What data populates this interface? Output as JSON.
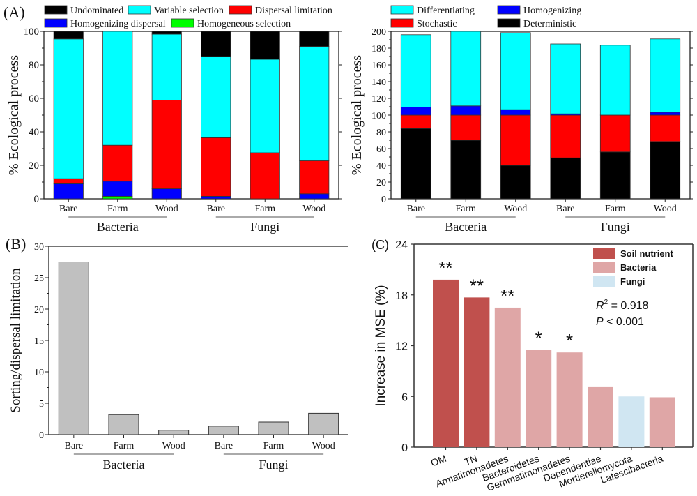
{
  "chart_data": [
    {
      "panel": "(A)",
      "type": "bar",
      "stacked": true,
      "ylabel": "% Ecological process",
      "ylim": [
        0,
        100
      ],
      "yticks": [
        0,
        20,
        40,
        60,
        80,
        100
      ],
      "categories": [
        "Bare",
        "Farm",
        "Wood",
        "Bare",
        "Farm",
        "Wood"
      ],
      "groups": [
        {
          "label": "Bacteria",
          "span": [
            0,
            2
          ]
        },
        {
          "label": "Fungi",
          "span": [
            3,
            5
          ]
        }
      ],
      "legend": [
        "Undominated",
        "Variable selection",
        "Dispersal limitation",
        "Homogenizing dispersal",
        "Homogeneous selection"
      ],
      "legend_position": "top",
      "series": [
        {
          "name": "Homogeneous selection",
          "color": "#00ff00",
          "values": [
            0,
            1.5,
            0,
            0,
            0,
            0
          ]
        },
        {
          "name": "Homogenizing dispersal",
          "color": "#0000ff",
          "values": [
            9,
            9,
            6,
            1.5,
            0,
            3
          ]
        },
        {
          "name": "Dispersal limitation",
          "color": "#ff0000",
          "values": [
            3,
            21.5,
            53,
            35,
            27.5,
            19.7
          ]
        },
        {
          "name": "Variable selection",
          "color": "#00ffff",
          "values": [
            83.5,
            68,
            39.3,
            48.5,
            55.8,
            68.3
          ]
        },
        {
          "name": "Undominated",
          "color": "#000000",
          "values": [
            4.5,
            0,
            1.7,
            15,
            16.7,
            9
          ]
        }
      ]
    },
    {
      "panel": "(A-right)",
      "type": "bar",
      "stacked": true,
      "ylabel": "% Ecological process",
      "ylim": [
        0,
        200
      ],
      "yticks": [
        0,
        20,
        40,
        60,
        80,
        100,
        120,
        140,
        160,
        180,
        200
      ],
      "categories": [
        "Bare",
        "Farm",
        "Wood",
        "Bare",
        "Farm",
        "Wood"
      ],
      "groups": [
        {
          "label": "Bacteria",
          "span": [
            0,
            2
          ]
        },
        {
          "label": "Fungi",
          "span": [
            3,
            5
          ]
        }
      ],
      "legend": [
        "Differentiating",
        "Homogenizing",
        "Stochastic",
        "Deterministic"
      ],
      "legend_position": "top",
      "series": [
        {
          "name": "Deterministic",
          "color": "#000000",
          "values": [
            84,
            70,
            40,
            49,
            56,
            68.5
          ]
        },
        {
          "name": "Stochastic",
          "color": "#ff0000",
          "values": [
            16,
            30,
            60,
            51,
            44,
            31.5
          ]
        },
        {
          "name": "Homogenizing",
          "color": "#0000ff",
          "values": [
            9.5,
            11,
            6.5,
            1.5,
            0,
            3.5
          ]
        },
        {
          "name": "Differentiating",
          "color": "#00ffff",
          "values": [
            86.5,
            89,
            92,
            83.5,
            83.5,
            87.5
          ]
        }
      ]
    },
    {
      "panel": "(B)",
      "type": "bar",
      "ylabel": "Sorting/dispersal limitation",
      "ylim": [
        0,
        30
      ],
      "yticks": [
        0,
        5,
        10,
        15,
        20,
        25,
        30
      ],
      "categories": [
        "Bare",
        "Farm",
        "Wood",
        "Bare",
        "Farm",
        "Wood"
      ],
      "groups": [
        {
          "label": "Bacteria",
          "span": [
            0,
            2
          ]
        },
        {
          "label": "Fungi",
          "span": [
            3,
            5
          ]
        }
      ],
      "color": "#c0c0c0",
      "values": [
        27.5,
        3.2,
        0.7,
        1.35,
        2.0,
        3.4
      ]
    },
    {
      "panel": "(C)",
      "type": "bar",
      "ylabel": "Increase in MSE (%)",
      "ylim": [
        0,
        24
      ],
      "yticks": [
        0,
        6,
        12,
        18,
        24
      ],
      "categories": [
        "OM",
        "TN",
        "Armatimonadetes",
        "Bacteroidetes",
        "Gemmatimonadetes",
        "Dependentiae",
        "Mortierellomycota",
        "Latescibacteria"
      ],
      "values": [
        19.8,
        17.7,
        16.5,
        11.5,
        11.2,
        7.1,
        6.0,
        5.9
      ],
      "group": [
        "Soil nutrient",
        "Soil nutrient",
        "Bacteria",
        "Bacteria",
        "Bacteria",
        "Bacteria",
        "Fungi",
        "Bacteria"
      ],
      "significance": [
        "**",
        "**",
        "**",
        "*",
        "*",
        "",
        "",
        ""
      ],
      "legend": [
        {
          "name": "Soil nutrient",
          "color": "#c0504d"
        },
        {
          "name": "Bacteria",
          "color": "#dfa6a6"
        },
        {
          "name": "Fungi",
          "color": "#d0e6f2"
        }
      ],
      "legend_position": "top-right",
      "annotation": {
        "r2_label": "R",
        "r2_sup": "2",
        "r2_value": " = 0.918",
        "p_label": "P",
        "p_value": " <  0.001"
      }
    }
  ],
  "labels": {
    "panelA": "(A)",
    "panelB": "(B)",
    "panelC": "(C)"
  }
}
